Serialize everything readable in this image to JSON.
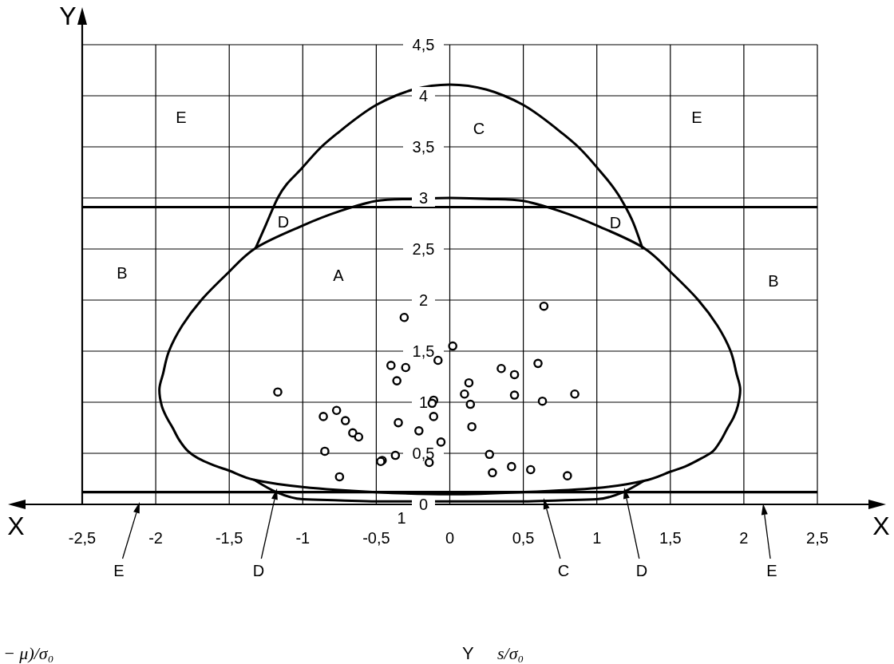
{
  "chart_data": {
    "type": "scatter",
    "xlabel": "X",
    "ylabel": "Y",
    "xlim": [
      -2.5,
      2.5
    ],
    "ylim": [
      0,
      4.5
    ],
    "xticks": [
      {
        "value": -2.5,
        "label": "-2,5"
      },
      -2,
      {
        "value": -1.5,
        "label": "-1,5"
      },
      -1,
      {
        "value": -0.5,
        "label": "-0,5"
      },
      0,
      {
        "value": 0.5,
        "label": "0,5"
      },
      1,
      {
        "value": 1.5,
        "label": "1,5"
      },
      2,
      {
        "value": 2.5,
        "label": "2,5"
      }
    ],
    "yticks": [
      0,
      {
        "value": 0.5,
        "label": "0,5"
      },
      1,
      {
        "value": 1.5,
        "label": "1,5"
      },
      2,
      {
        "value": 2.5,
        "label": "2,5"
      },
      3,
      {
        "value": 3.5,
        "label": "3,5"
      },
      4,
      {
        "value": 4.5,
        "label": "4,5"
      }
    ],
    "grid": true,
    "series": [
      {
        "type": "line",
        "color": "#000000",
        "marker": "none",
        "x": [
          -1.32,
          -1.25,
          -1.17,
          -1.0,
          -0.88,
          -0.75,
          -0.5,
          -0.37,
          -0.25,
          0,
          0.25,
          0.37,
          0.5,
          0.75,
          0.88,
          1.0,
          1.16,
          1.25,
          1.31
        ],
        "values": [
          2.51,
          2.74,
          3.0,
          3.3,
          3.49,
          3.65,
          3.91,
          4.0,
          4.06,
          4.11,
          4.06,
          4.0,
          3.91,
          3.65,
          3.49,
          3.3,
          3.0,
          2.75,
          2.51
        ]
      },
      {
        "type": "line",
        "color": "#000000",
        "marker": "none",
        "x": [
          -1.33,
          -1.18,
          -1.0,
          -0.75,
          -0.5,
          0,
          0.5,
          0.75,
          1.0,
          1.18,
          1.32
        ],
        "values": [
          0.24,
          0.12,
          0.05,
          0.04,
          0.03,
          0.03,
          0.03,
          0.04,
          0.05,
          0.12,
          0.23
        ]
      },
      {
        "color": "#000000",
        "marker": "circle",
        "x": [
          -0.31,
          0.02,
          -0.08,
          -0.4,
          -0.3,
          -0.36,
          -1.17,
          -0.11,
          -0.12,
          -0.11,
          -0.86,
          -0.77,
          -0.71,
          -0.66,
          -0.62,
          -0.35,
          -0.21,
          -0.06,
          -0.85,
          -0.37,
          -0.46,
          -0.47,
          -0.14,
          -0.75,
          0.64,
          0.6,
          0.35,
          0.44,
          0.13,
          0.1,
          0.14,
          0.44,
          0.63,
          0.85,
          0.15,
          0.27,
          0.29,
          0.42,
          0.55,
          0.8
        ],
        "values": [
          1.83,
          1.55,
          1.41,
          1.36,
          1.34,
          1.21,
          1.1,
          1.02,
          0.99,
          0.86,
          0.86,
          0.92,
          0.82,
          0.7,
          0.66,
          0.8,
          0.72,
          0.61,
          0.52,
          0.48,
          0.43,
          0.42,
          0.41,
          0.27,
          1.94,
          1.38,
          1.33,
          1.27,
          1.19,
          1.08,
          0.98,
          1.07,
          1.01,
          1.08,
          0.76,
          0.49,
          0.31,
          0.37,
          0.34,
          0.28
        ]
      }
    ],
    "ref_lines": [
      {
        "axis": "y",
        "value": 2.91,
        "color": "#000000"
      },
      {
        "axis": "y",
        "value": 0.12,
        "color": "#000000"
      }
    ],
    "annotations": [
      "E",
      "C",
      "E",
      "D",
      "D",
      "B",
      "A",
      "B",
      "E",
      "D",
      "C",
      "D",
      "E",
      "1",
      "− μ)/σ₀",
      "Y",
      "s/σ₀"
    ]
  }
}
